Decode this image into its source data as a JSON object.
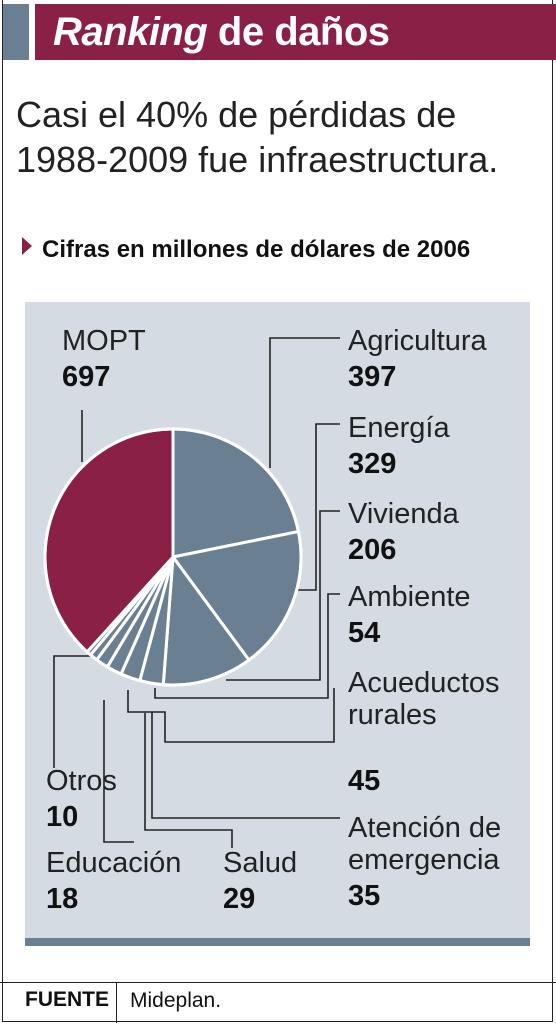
{
  "header": {
    "title_italic": "Ranking",
    "title_rest": "de daños"
  },
  "headline": "Casi el 40% de pérdidas de 1988-2009 fue infraestructura.",
  "subheading": "Cifras en millones de dólares de 2006",
  "colors": {
    "accent": "#8a2046",
    "slate": "#6b7f93",
    "panel": "#d4dbe3"
  },
  "chart_data": {
    "type": "pie",
    "title": "Cifras en millones de dólares de 2006",
    "slices": [
      {
        "label": "MOPT",
        "label_lines": [
          "MOPT"
        ],
        "value": 697,
        "display": "697"
      },
      {
        "label": "Agricultura",
        "label_lines": [
          "Agricultura"
        ],
        "value": 397,
        "display": "397"
      },
      {
        "label": "Energía",
        "label_lines": [
          "Energía"
        ],
        "value": 329,
        "display": "329"
      },
      {
        "label": "Vivienda",
        "label_lines": [
          "Vivienda"
        ],
        "value": 206,
        "display": "206"
      },
      {
        "label": "Ambiente",
        "label_lines": [
          "Ambiente"
        ],
        "value": 54,
        "display": "54"
      },
      {
        "label": "Acueductos rurales",
        "label_lines": [
          "Acueductos",
          "rurales"
        ],
        "value": 45,
        "display": "45"
      },
      {
        "label": "Atención de emergencia",
        "label_lines": [
          "Atención de",
          "emergencia"
        ],
        "value": 35,
        "display": "35"
      },
      {
        "label": "Salud",
        "label_lines": [
          "Salud"
        ],
        "value": 29,
        "display": "29"
      },
      {
        "label": "Educación",
        "label_lines": [
          "Educación"
        ],
        "value": 18,
        "display": "18"
      },
      {
        "label": "Otros",
        "label_lines": [
          "Otros"
        ],
        "value": 10,
        "display": "10"
      }
    ],
    "highlight": "MOPT"
  },
  "footer": {
    "label": "FUENTE",
    "source": "Mideplan."
  }
}
